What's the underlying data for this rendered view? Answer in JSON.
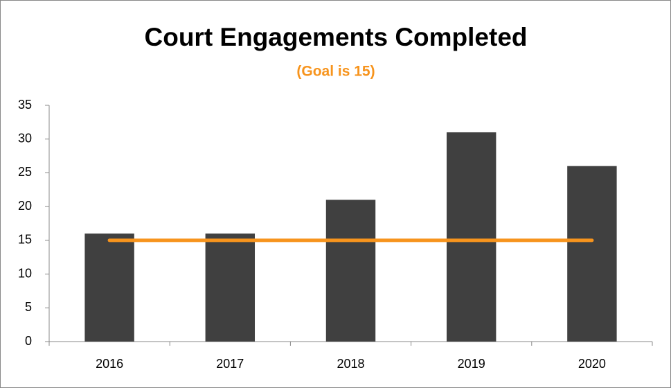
{
  "chart_data": {
    "type": "bar",
    "title": "Court Engagements Completed",
    "subtitle": "(Goal is 15)",
    "categories": [
      "2016",
      "2017",
      "2018",
      "2019",
      "2020"
    ],
    "series": [
      {
        "type": "bar",
        "color": "#404040",
        "values": [
          16,
          16,
          21,
          31,
          26
        ]
      },
      {
        "type": "line",
        "color": "#f7941d",
        "values": [
          15,
          15,
          15,
          15,
          15
        ]
      }
    ],
    "ylim": [
      0,
      35
    ],
    "yticks": [
      0,
      5,
      10,
      15,
      20,
      25,
      30,
      35
    ],
    "grid": false
  }
}
